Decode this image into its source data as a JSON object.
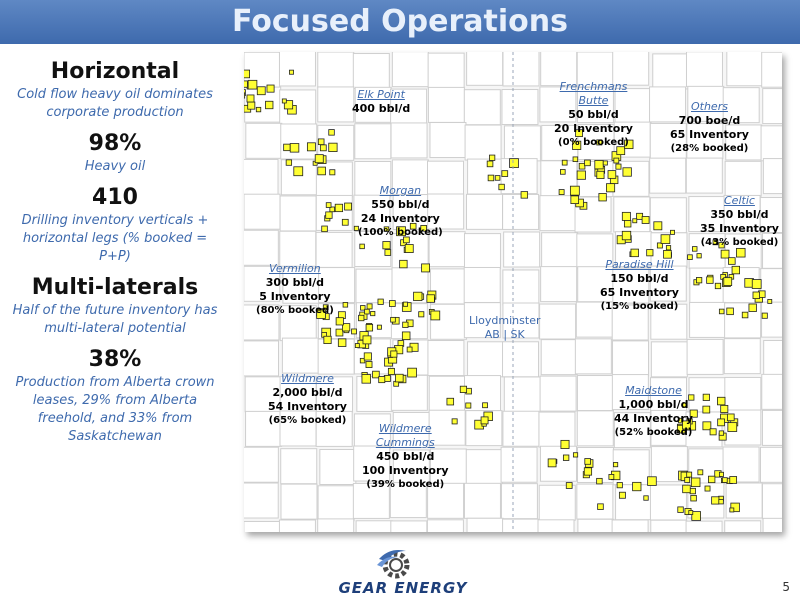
{
  "title": "Focused Operations",
  "stats": [
    {
      "big": "Horizontal",
      "desc": "Cold flow heavy oil dominates corporate production"
    },
    {
      "big": "98%",
      "desc": "Heavy oil"
    },
    {
      "big": "410",
      "desc": "Drilling inventory verticals + horizontal legs (% booked = P+P)"
    },
    {
      "big": "Multi-laterals",
      "desc": "Half of the future inventory has multi-lateral potential"
    },
    {
      "big": "38%",
      "desc": "Production from Alberta crown leases, 29% from Alberta freehold, and 33% from Saskatchewan"
    }
  ],
  "areas": {
    "elk_point": {
      "name": "Elk Point",
      "prod": "400 bbl/d"
    },
    "frenchmans": {
      "name1": "Frenchmans",
      "name2": "Butte",
      "prod": "50 bbl/d",
      "inv": "20 Inventory",
      "booked": "(0% booked)"
    },
    "others": {
      "name": "Others",
      "prod": "700 boe/d",
      "inv": "65 Inventory",
      "booked": "(28% booked)"
    },
    "morgan": {
      "name": "Morgan",
      "prod": "550 bbl/d",
      "inv": "24 Inventory",
      "booked": "(100% booked)"
    },
    "celtic": {
      "name": "Celtic",
      "prod": "350 bbl/d",
      "inv": "35 Inventory",
      "booked": "(43% booked)"
    },
    "vermilion": {
      "name": "Vermilion",
      "prod": "300 bbl/d",
      "inv": "5 Inventory",
      "booked": "(80% booked)"
    },
    "paradise": {
      "name": "Paradise Hill",
      "prod": "150 bbl/d",
      "inv": "65 Inventory",
      "booked": "(15% booked)"
    },
    "wildmere": {
      "name": "Wildmere",
      "prod": "2,000 bbl/d",
      "inv": "54 Inventory",
      "booked": "(65% booked)"
    },
    "maidstone": {
      "name": "Maidstone",
      "prod": "1,000 bbl/d",
      "inv": "44 Inventory",
      "booked": "(52% booked)"
    },
    "cummings": {
      "name1": "Wildmere",
      "name2": "Cummings",
      "prod": "450 bbl/d",
      "inv": "100 Inventory",
      "booked": "(39% booked)"
    }
  },
  "city": {
    "name": "Lloydminster",
    "border": "AB | SK"
  },
  "logo": {
    "text": "GEAR ENERGY"
  },
  "page_number": "5",
  "colors": {
    "title_bg": "#4a76b8",
    "accent": "#3e6aad",
    "land": "#ffff33"
  }
}
